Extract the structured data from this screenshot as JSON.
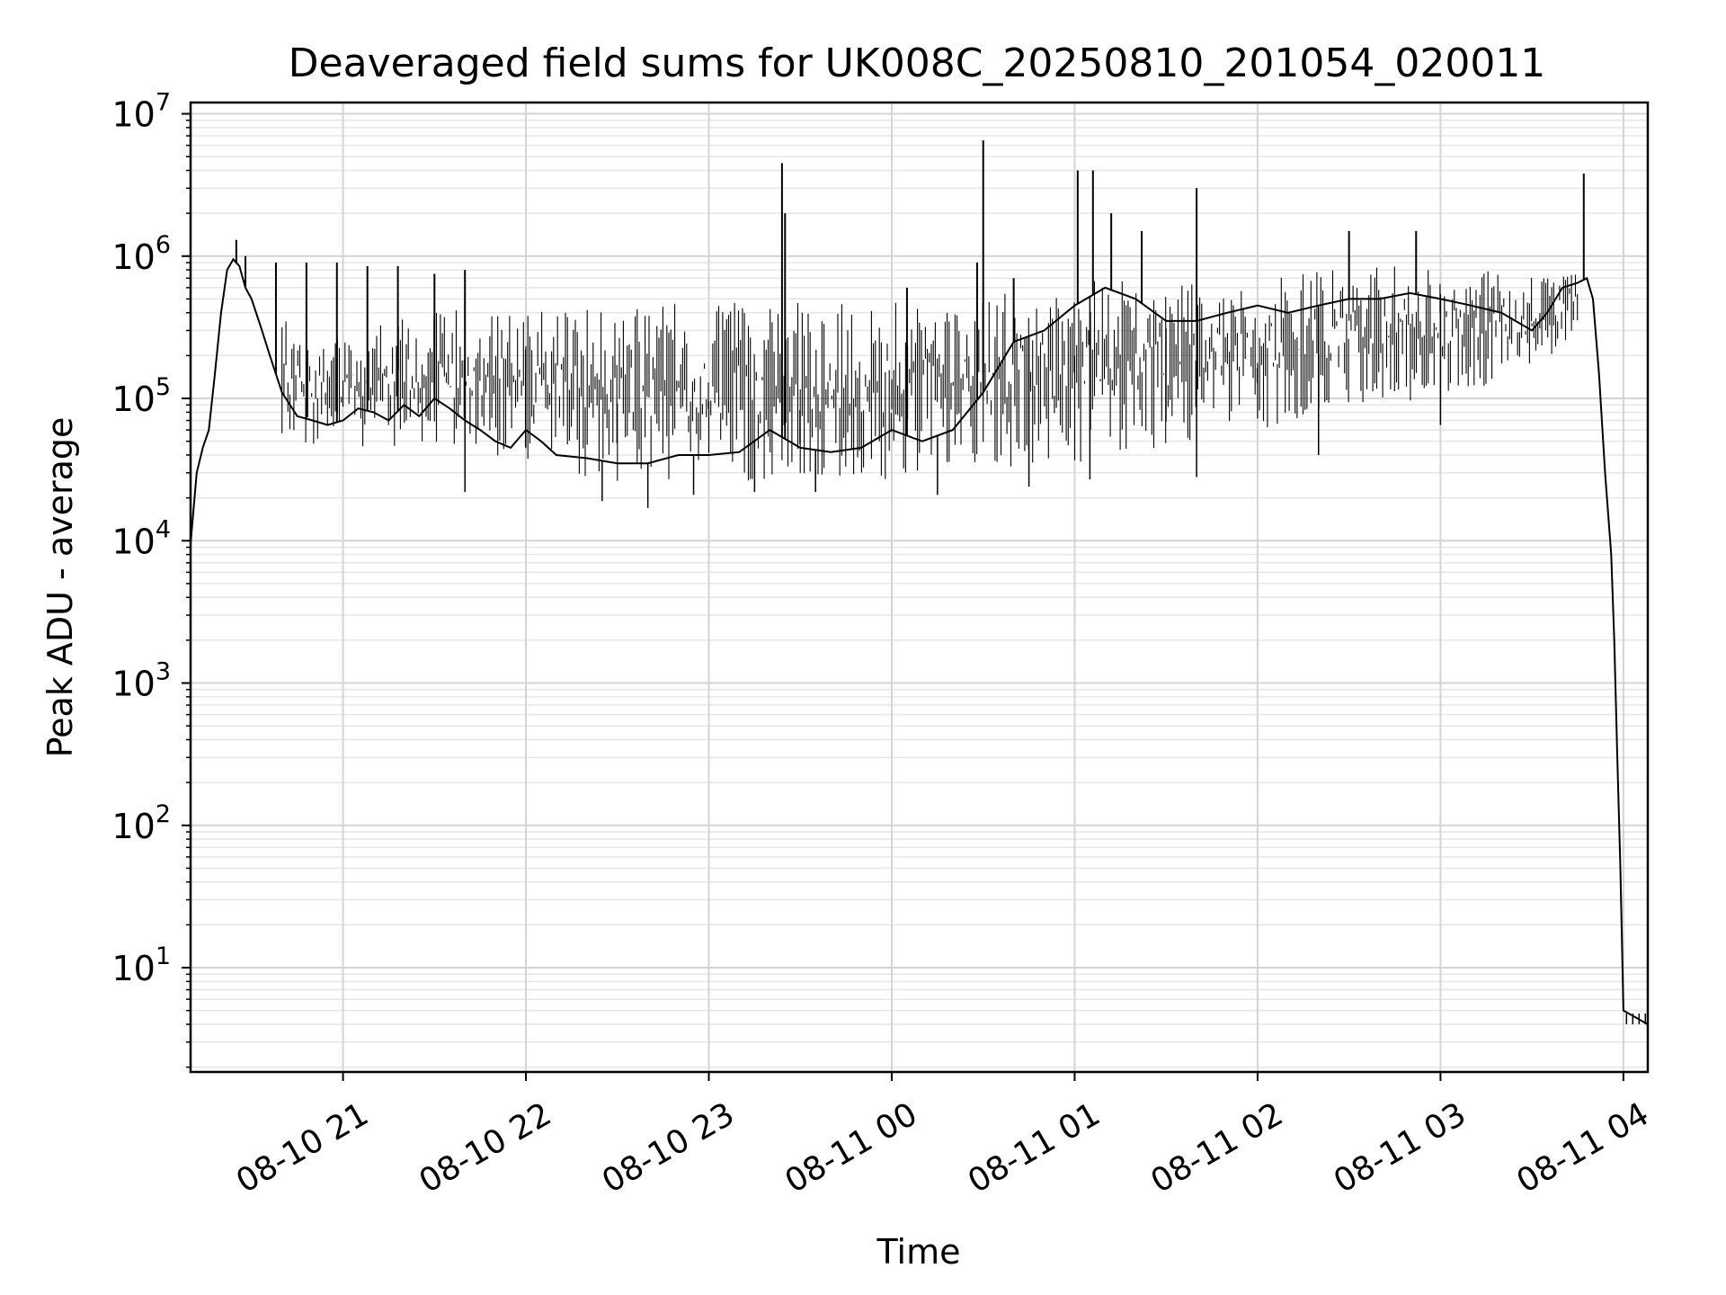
{
  "chart_data": {
    "type": "line",
    "title": "Deaveraged field sums for UK008C_20250810_201054_020011",
    "xlabel": "Time",
    "ylabel": "Peak ADU - average",
    "yscale": "log",
    "grid": true,
    "xlim": [
      "2025-08-10 20:10",
      "2025-08-11 04:08"
    ],
    "ylim": [
      1.85,
      12000000
    ],
    "x_ticks": [
      {
        "label": "08-10 21",
        "time": "2025-08-10 21:00"
      },
      {
        "label": "08-10 22",
        "time": "2025-08-10 22:00"
      },
      {
        "label": "08-10 23",
        "time": "2025-08-10 23:00"
      },
      {
        "label": "08-11 00",
        "time": "2025-08-11 00:00"
      },
      {
        "label": "08-11 01",
        "time": "2025-08-11 01:00"
      },
      {
        "label": "08-11 02",
        "time": "2025-08-11 02:00"
      },
      {
        "label": "08-11 03",
        "time": "2025-08-11 03:00"
      },
      {
        "label": "08-11 04",
        "time": "2025-08-11 04:00"
      }
    ],
    "y_ticks": [
      {
        "base": "10",
        "exp": "1",
        "value": 10
      },
      {
        "base": "10",
        "exp": "2",
        "value": 100
      },
      {
        "base": "10",
        "exp": "3",
        "value": 1000
      },
      {
        "base": "10",
        "exp": "4",
        "value": 10000
      },
      {
        "base": "10",
        "exp": "5",
        "value": 100000
      },
      {
        "base": "10",
        "exp": "6",
        "value": 1000000
      },
      {
        "base": "10",
        "exp": "7",
        "value": 10000000
      }
    ],
    "series": [
      {
        "color": "#000000",
        "points": [
          [
            "2025-08-10 20:10",
            9500
          ],
          [
            "2025-08-10 20:12",
            30000
          ],
          [
            "2025-08-10 20:14",
            45000
          ],
          [
            "2025-08-10 20:16",
            60000
          ],
          [
            "2025-08-10 20:18",
            150000
          ],
          [
            "2025-08-10 20:20",
            400000
          ],
          [
            "2025-08-10 20:22",
            800000
          ],
          [
            "2025-08-10 20:24",
            950000
          ],
          [
            "2025-08-10 20:26",
            850000
          ],
          [
            "2025-08-10 20:28",
            600000
          ],
          [
            "2025-08-10 20:30",
            500000
          ],
          [
            "2025-08-10 20:33",
            320000
          ],
          [
            "2025-08-10 20:36",
            200000
          ],
          [
            "2025-08-10 20:40",
            110000
          ],
          [
            "2025-08-10 20:45",
            75000
          ],
          [
            "2025-08-10 20:50",
            70000
          ],
          [
            "2025-08-10 20:55",
            65000
          ],
          [
            "2025-08-10 21:00",
            70000
          ],
          [
            "2025-08-10 21:05",
            85000
          ],
          [
            "2025-08-10 21:10",
            80000
          ],
          [
            "2025-08-10 21:15",
            70000
          ],
          [
            "2025-08-10 21:20",
            90000
          ],
          [
            "2025-08-10 21:25",
            75000
          ],
          [
            "2025-08-10 21:30",
            100000
          ],
          [
            "2025-08-10 21:35",
            85000
          ],
          [
            "2025-08-10 21:40",
            70000
          ],
          [
            "2025-08-10 21:45",
            60000
          ],
          [
            "2025-08-10 21:50",
            50000
          ],
          [
            "2025-08-10 21:55",
            45000
          ],
          [
            "2025-08-10 22:00",
            60000
          ],
          [
            "2025-08-10 22:05",
            50000
          ],
          [
            "2025-08-10 22:10",
            40000
          ],
          [
            "2025-08-10 22:20",
            38000
          ],
          [
            "2025-08-10 22:30",
            35000
          ],
          [
            "2025-08-10 22:40",
            35000
          ],
          [
            "2025-08-10 22:50",
            40000
          ],
          [
            "2025-08-10 23:00",
            40000
          ],
          [
            "2025-08-10 23:10",
            42000
          ],
          [
            "2025-08-10 23:20",
            60000
          ],
          [
            "2025-08-10 23:30",
            45000
          ],
          [
            "2025-08-10 23:40",
            42000
          ],
          [
            "2025-08-10 23:50",
            45000
          ],
          [
            "2025-08-11 00:00",
            60000
          ],
          [
            "2025-08-11 00:10",
            50000
          ],
          [
            "2025-08-11 00:20",
            60000
          ],
          [
            "2025-08-11 00:30",
            110000
          ],
          [
            "2025-08-11 00:40",
            250000
          ],
          [
            "2025-08-11 00:50",
            300000
          ],
          [
            "2025-08-11 01:00",
            450000
          ],
          [
            "2025-08-11 01:10",
            600000
          ],
          [
            "2025-08-11 01:20",
            500000
          ],
          [
            "2025-08-11 01:30",
            350000
          ],
          [
            "2025-08-11 01:40",
            350000
          ],
          [
            "2025-08-11 01:50",
            400000
          ],
          [
            "2025-08-11 02:00",
            450000
          ],
          [
            "2025-08-11 02:10",
            400000
          ],
          [
            "2025-08-11 02:20",
            450000
          ],
          [
            "2025-08-11 02:30",
            500000
          ],
          [
            "2025-08-11 02:40",
            500000
          ],
          [
            "2025-08-11 02:50",
            550000
          ],
          [
            "2025-08-11 03:00",
            500000
          ],
          [
            "2025-08-11 03:10",
            450000
          ],
          [
            "2025-08-11 03:20",
            400000
          ],
          [
            "2025-08-11 03:30",
            300000
          ],
          [
            "2025-08-11 03:35",
            400000
          ],
          [
            "2025-08-11 03:40",
            600000
          ],
          [
            "2025-08-11 03:45",
            650000
          ],
          [
            "2025-08-11 03:48",
            700000
          ],
          [
            "2025-08-11 03:50",
            500000
          ],
          [
            "2025-08-11 03:52",
            150000
          ],
          [
            "2025-08-11 03:54",
            30000
          ],
          [
            "2025-08-11 03:56",
            8000
          ],
          [
            "2025-08-11 03:57",
            2000
          ],
          [
            "2025-08-11 03:58",
            300
          ],
          [
            "2025-08-11 03:59",
            50
          ],
          [
            "2025-08-11 04:00",
            5
          ],
          [
            "2025-08-11 04:08",
            4
          ]
        ],
        "band": [
          [
            "2025-08-10 20:40",
            45000,
            400000
          ],
          [
            "2025-08-10 21:00",
            45000,
            300000
          ],
          [
            "2025-08-10 21:30",
            45000,
            500000
          ],
          [
            "2025-08-10 22:00",
            35000,
            450000
          ],
          [
            "2025-08-10 22:30",
            25000,
            550000
          ],
          [
            "2025-08-10 23:00",
            25000,
            550000
          ],
          [
            "2025-08-10 23:30",
            25000,
            550000
          ],
          [
            "2025-08-11 00:00",
            25000,
            550000
          ],
          [
            "2025-08-11 00:30",
            28000,
            600000
          ],
          [
            "2025-08-11 01:00",
            35000,
            800000
          ],
          [
            "2025-08-11 01:30",
            45000,
            750000
          ],
          [
            "2025-08-11 02:00",
            60000,
            800000
          ],
          [
            "2025-08-11 02:30",
            90000,
            950000
          ],
          [
            "2025-08-11 03:00",
            100000,
            1000000
          ],
          [
            "2025-08-11 03:30",
            150000,
            800000
          ],
          [
            "2025-08-11 03:45",
            300000,
            800000
          ]
        ],
        "spikes": [
          [
            "2025-08-10 20:25",
            1300000
          ],
          [
            "2025-08-10 20:28",
            1000000
          ],
          [
            "2025-08-10 20:38",
            900000
          ],
          [
            "2025-08-10 20:48",
            900000
          ],
          [
            "2025-08-10 20:58",
            900000
          ],
          [
            "2025-08-10 21:08",
            850000
          ],
          [
            "2025-08-10 21:18",
            850000
          ],
          [
            "2025-08-10 21:30",
            750000
          ],
          [
            "2025-08-10 21:40",
            800000
          ],
          [
            "2025-08-10 23:24",
            4500000
          ],
          [
            "2025-08-10 23:25",
            2000000
          ],
          [
            "2025-08-11 00:05",
            600000
          ],
          [
            "2025-08-11 00:28",
            900000
          ],
          [
            "2025-08-11 00:30",
            6500000
          ],
          [
            "2025-08-11 00:40",
            700000
          ],
          [
            "2025-08-11 01:01",
            4000000
          ],
          [
            "2025-08-11 01:06",
            4000000
          ],
          [
            "2025-08-11 01:12",
            2000000
          ],
          [
            "2025-08-11 01:22",
            1500000
          ],
          [
            "2025-08-11 01:40",
            3000000
          ],
          [
            "2025-08-11 02:30",
            1500000
          ],
          [
            "2025-08-11 02:52",
            1500000
          ],
          [
            "2025-08-11 03:47",
            3800000
          ]
        ],
        "dips": [
          [
            "2025-08-10 21:40",
            22000
          ],
          [
            "2025-08-10 22:25",
            19000
          ],
          [
            "2025-08-10 22:40",
            17000
          ],
          [
            "2025-08-10 22:55",
            21000
          ],
          [
            "2025-08-10 23:15",
            22000
          ],
          [
            "2025-08-10 23:35",
            22000
          ],
          [
            "2025-08-11 00:15",
            21000
          ],
          [
            "2025-08-11 00:45",
            24000
          ],
          [
            "2025-08-11 01:05",
            27000
          ],
          [
            "2025-08-11 01:40",
            28000
          ],
          [
            "2025-08-11 02:20",
            40000
          ],
          [
            "2025-08-11 03:00",
            65000
          ]
        ]
      }
    ]
  }
}
